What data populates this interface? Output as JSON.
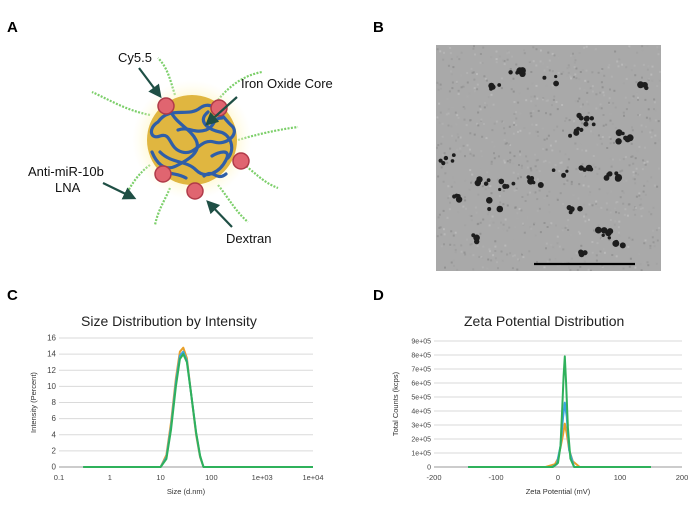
{
  "panels": {
    "a": {
      "letter": "A",
      "labels": {
        "cy55": "Cy5.5",
        "iron": "Iron Oxide Core",
        "antimir_1": "Anti-miR-10b",
        "antimir_2": "LNA",
        "dextran": "Dextran"
      }
    },
    "b": {
      "letter": "B"
    },
    "c": {
      "letter": "C"
    },
    "d": {
      "letter": "D"
    }
  },
  "colors": {
    "orange": "#e8a02a",
    "blue": "#3aa3e0",
    "green": "#2fb15b",
    "core": "#e0b640",
    "dextran": "#2f5ea8",
    "dye": "#e06570",
    "lna": "#7ccf6a",
    "arrow": "#1f4f45"
  },
  "chart_data": [
    {
      "type": "line",
      "title": "Size Distribution by Intensity",
      "xlabel": "Size (d.nm)",
      "ylabel": "Intensity (Percent)",
      "xscale": "log",
      "xlim": [
        0.1,
        10000
      ],
      "ylim": [
        0,
        16
      ],
      "x_ticks": [
        0.1,
        1,
        10,
        100,
        1000,
        10000
      ],
      "x_tick_labels": [
        "0.1",
        "1",
        "10",
        "100",
        "1e+03",
        "1e+04"
      ],
      "y_ticks": [
        0,
        2,
        4,
        6,
        8,
        10,
        12,
        14,
        16
      ],
      "y_tick_labels": [
        "0",
        "2",
        "4",
        "6",
        "8",
        "10",
        "12",
        "14",
        "16"
      ],
      "grid": "horizontal",
      "series": [
        {
          "color": "orange",
          "x": [
            0.3,
            10,
            13,
            16,
            20,
            24,
            28,
            33,
            40,
            50,
            60,
            70,
            10000
          ],
          "y": [
            0,
            0,
            1.5,
            5.5,
            11,
            14.3,
            14.8,
            13.5,
            9,
            4,
            1.2,
            0,
            0
          ]
        },
        {
          "color": "blue",
          "x": [
            0.3,
            10,
            13,
            16,
            20,
            24,
            28,
            33,
            40,
            50,
            60,
            70,
            10000
          ],
          "y": [
            0,
            0,
            1.2,
            5,
            10.5,
            13.8,
            14.3,
            13.2,
            9,
            4.2,
            1.3,
            0,
            0
          ]
        },
        {
          "color": "green",
          "x": [
            0.3,
            10,
            13,
            16,
            20,
            24,
            28,
            33,
            40,
            50,
            60,
            70,
            10000
          ],
          "y": [
            0,
            0,
            1,
            4.6,
            10,
            13.4,
            14,
            13,
            9,
            4.3,
            1.4,
            0,
            0
          ]
        }
      ]
    },
    {
      "type": "line",
      "title": "Zeta Potential Distribution",
      "xlabel": "Zeta Potential (mV)",
      "ylabel": "Total Counts (kcps)",
      "xlim": [
        -200,
        200
      ],
      "ylim": [
        0,
        900000
      ],
      "x_ticks": [
        -200,
        -100,
        0,
        100,
        200
      ],
      "x_tick_labels": [
        "-200",
        "-100",
        "0",
        "100",
        "200"
      ],
      "y_ticks": [
        0,
        100000,
        200000,
        300000,
        400000,
        500000,
        600000,
        700000,
        800000,
        900000
      ],
      "y_tick_labels": [
        "0",
        "1e+05",
        "2e+05",
        "3e+05",
        "4e+05",
        "5e+05",
        "6e+05",
        "7e+05",
        "8e+05",
        "9e+05"
      ],
      "grid": "horizontal",
      "series": [
        {
          "color": "orange",
          "x": [
            -145,
            -20,
            -5,
            0,
            4,
            8,
            11,
            14,
            18,
            24,
            35,
            150
          ],
          "y": [
            0,
            0,
            20000,
            60000,
            140000,
            230000,
            310000,
            240000,
            120000,
            40000,
            0,
            0
          ]
        },
        {
          "color": "blue",
          "x": [
            -145,
            -10,
            -2,
            4,
            8,
            11,
            14,
            18,
            26,
            150
          ],
          "y": [
            0,
            0,
            20000,
            150000,
            350000,
            460000,
            360000,
            120000,
            0,
            0
          ]
        },
        {
          "color": "green",
          "x": [
            -145,
            -8,
            0,
            4,
            7,
            9,
            11,
            13,
            16,
            20,
            26,
            150
          ],
          "y": [
            0,
            0,
            30000,
            150000,
            430000,
            650000,
            790000,
            600000,
            280000,
            60000,
            0,
            0
          ]
        }
      ]
    }
  ]
}
